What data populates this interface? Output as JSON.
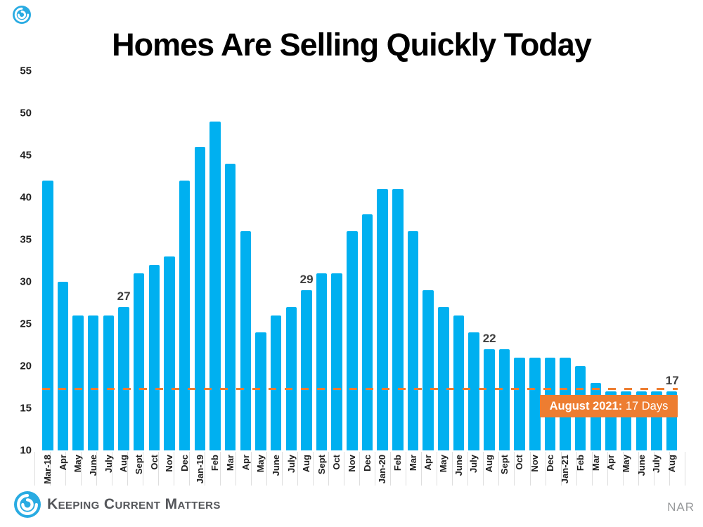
{
  "chart_data": {
    "type": "bar",
    "title": "Homes Are Selling Quickly Today",
    "ylabel": "",
    "xlabel": "",
    "ylim": [
      10,
      55
    ],
    "yticks": [
      55,
      50,
      45,
      40,
      35,
      30,
      25,
      20,
      15,
      10
    ],
    "grid": false,
    "bar_color": "#00B0F0",
    "categories": [
      "Mar-18",
      "Apr",
      "May",
      "June",
      "July",
      "Aug",
      "Sept",
      "Oct",
      "Nov",
      "Dec",
      "Jan-19",
      "Feb",
      "Mar",
      "Apr",
      "May",
      "June",
      "July",
      "Aug",
      "Sept",
      "Oct",
      "Nov",
      "Dec",
      "Jan-20",
      "Feb",
      "Mar",
      "Apr",
      "May",
      "June",
      "July",
      "Aug",
      "Sept",
      "Oct",
      "Nov",
      "Dec",
      "Jan-21",
      "Feb",
      "Mar",
      "Apr",
      "May",
      "June",
      "July",
      "Aug"
    ],
    "values": [
      42,
      30,
      26,
      26,
      26,
      27,
      31,
      32,
      33,
      42,
      46,
      49,
      44,
      36,
      24,
      26,
      27,
      29,
      31,
      31,
      36,
      38,
      41,
      41,
      36,
      29,
      27,
      26,
      24,
      22,
      22,
      21,
      21,
      21,
      21,
      20,
      18,
      17,
      17,
      17,
      17,
      17
    ],
    "annotations": [
      {
        "index": 5,
        "text": "27"
      },
      {
        "index": 17,
        "text": "29"
      },
      {
        "index": 29,
        "text": "22"
      },
      {
        "index": 41,
        "text": "17"
      }
    ],
    "reference_line": {
      "value": 17.33,
      "color": "#ED7D31",
      "style": "dashed"
    },
    "callout": {
      "bold": "August 2021:",
      "regular": " 17 Days",
      "bg": "#ED7D31",
      "text_color": "#ffffff"
    }
  },
  "footer": {
    "brand": "Keeping Current Matters",
    "source": "NAR"
  },
  "colors": {
    "bar_blue": "#00B0F0",
    "accent_orange": "#ED7D31",
    "logo_blue": "#29ABE2",
    "annotation_gray": "#3f3f3f",
    "brand_gray": "#54565a",
    "source_gray": "#97999b"
  }
}
